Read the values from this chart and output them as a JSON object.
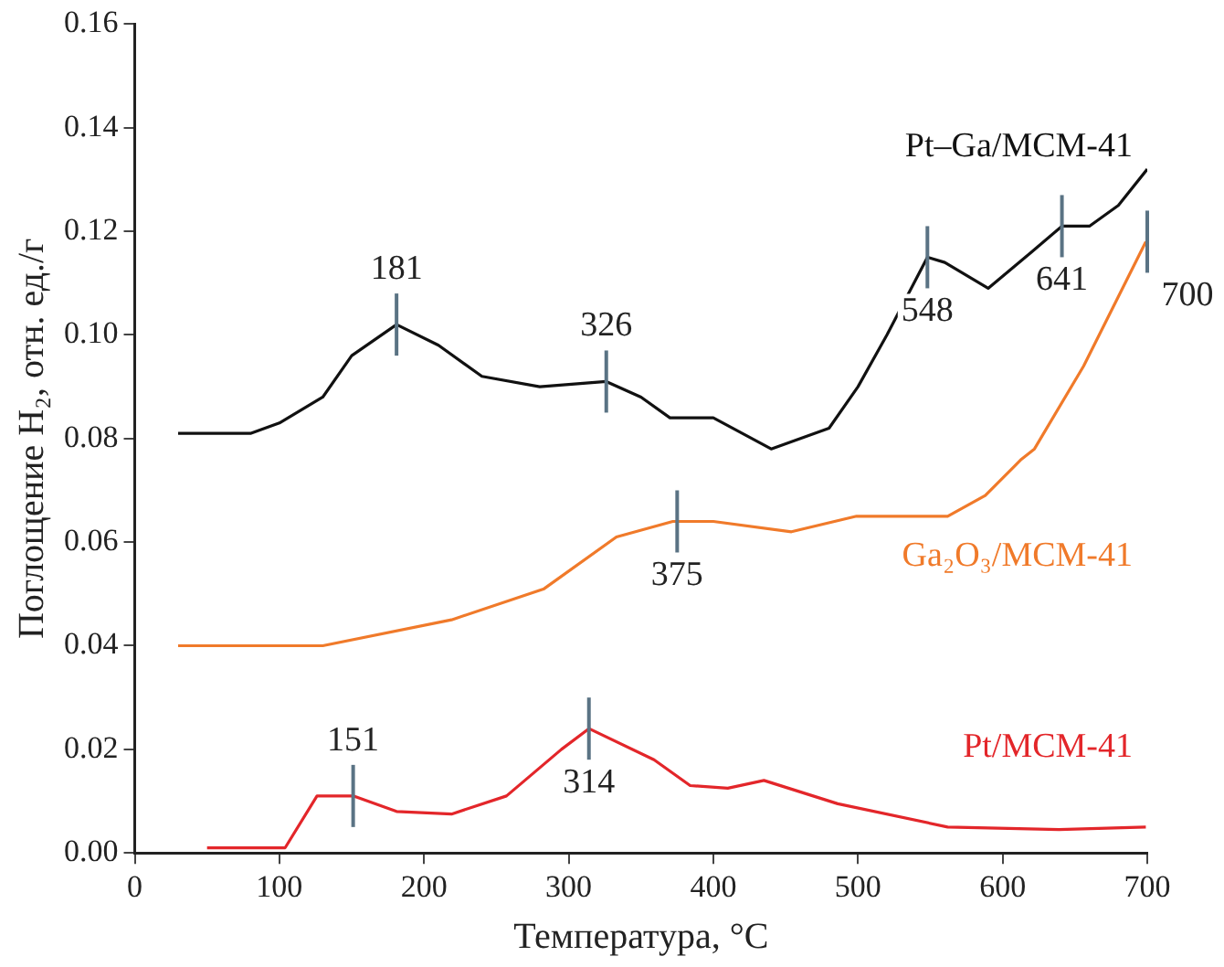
{
  "chart_data": {
    "type": "line",
    "xlabel": "Температура, °C",
    "ylabel": "Поглощение H₂, отн. ед./г",
    "xlim": [
      0,
      700
    ],
    "xticks": [
      0,
      100,
      200,
      300,
      400,
      500,
      600,
      700
    ],
    "ylim": [
      0,
      0.16
    ],
    "yticks": [
      {
        "value": 0,
        "label": "0.00"
      },
      {
        "value": 0.02,
        "label": "0.02"
      },
      {
        "value": 0.04,
        "label": "0.04"
      },
      {
        "value": 0.06,
        "label": "0.06"
      },
      {
        "value": 0.08,
        "label": "0.08"
      },
      {
        "value": 0.1,
        "label": "0.10"
      },
      {
        "value": 0.12,
        "label": "0.12"
      },
      {
        "value": 0.14,
        "label": "0.14"
      },
      {
        "value": 0.16,
        "label": "0.16"
      }
    ],
    "grid": false,
    "legend": false,
    "marker": "none",
    "line_style": "solid",
    "series": [
      {
        "name": "Pt–Ga/MCM-41",
        "color": "#111111",
        "x": [
          30,
          80,
          100,
          130,
          150,
          181,
          210,
          240,
          280,
          326,
          350,
          370,
          400,
          440,
          480,
          500,
          520,
          548,
          560,
          590,
          620,
          641,
          660,
          680,
          700
        ],
        "values": [
          0.081,
          0.081,
          0.083,
          0.088,
          0.096,
          0.102,
          0.098,
          0.092,
          0.09,
          0.091,
          0.088,
          0.084,
          0.084,
          0.078,
          0.082,
          0.09,
          0.1,
          0.115,
          0.114,
          0.109,
          0.116,
          0.121,
          0.121,
          0.125,
          0.132
        ]
      },
      {
        "name": "Ga₂O₃/MCM-41",
        "color": "#f07a2a",
        "x": [
          30,
          80,
          130,
          219,
          283,
          333,
          372,
          400,
          454,
          499,
          562,
          588,
          613,
          622,
          656,
          699
        ],
        "values": [
          0.04,
          0.04,
          0.04,
          0.045,
          0.051,
          0.061,
          0.064,
          0.064,
          0.062,
          0.065,
          0.065,
          0.069,
          0.076,
          0.078,
          0.094,
          0.118
        ]
      },
      {
        "name": "Pt/MCM-41",
        "color": "#e3262a",
        "x": [
          50,
          104,
          126,
          151,
          181,
          219,
          257,
          295,
          314,
          359,
          384,
          410,
          435,
          486,
          562,
          639,
          699
        ],
        "values": [
          0.001,
          0.001,
          0.011,
          0.011,
          0.008,
          0.0075,
          0.011,
          0.02,
          0.024,
          0.018,
          0.013,
          0.0125,
          0.014,
          0.0095,
          0.005,
          0.0045,
          0.005
        ]
      }
    ],
    "annotations": [
      {
        "text": "181",
        "x": 181,
        "y": 0.102
      },
      {
        "text": "326",
        "x": 326,
        "y": 0.091
      },
      {
        "text": "548",
        "x": 548,
        "y": 0.115
      },
      {
        "text": "641",
        "x": 641,
        "y": 0.121
      },
      {
        "text": "700",
        "x": 700,
        "y": 0.118
      },
      {
        "text": "375",
        "x": 375,
        "y": 0.064
      },
      {
        "text": "151",
        "x": 151,
        "y": 0.011
      },
      {
        "text": "314",
        "x": 314,
        "y": 0.024
      }
    ]
  }
}
